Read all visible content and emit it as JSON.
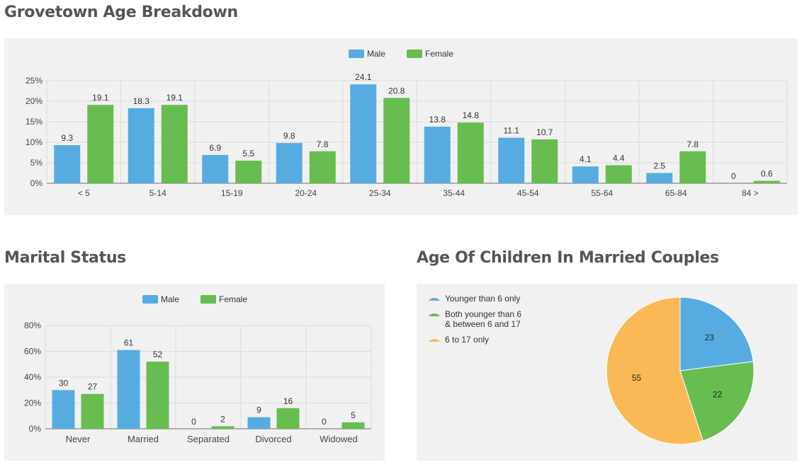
{
  "headings": {
    "age": "Grovetown Age Breakdown",
    "marital": "Marital Status",
    "children": "Age Of Children In Married Couples"
  },
  "colors": {
    "male": "#56ace1",
    "female": "#67bd50",
    "orange": "#fbb857"
  },
  "chart_data": [
    {
      "type": "bar",
      "title": "Grovetown Age Breakdown",
      "xlabel": "",
      "ylabel": "",
      "categories": [
        "< 5",
        "5-14",
        "15-19",
        "20-24",
        "25-34",
        "35-44",
        "45-54",
        "55-64",
        "65-84",
        "84 >"
      ],
      "series": [
        {
          "name": "Male",
          "color": "#56ace1",
          "values": [
            9.3,
            18.3,
            6.9,
            9.8,
            24.1,
            13.8,
            11.1,
            4.1,
            2.5,
            0
          ]
        },
        {
          "name": "Female",
          "color": "#67bd50",
          "values": [
            19.1,
            19.1,
            5.5,
            7.8,
            20.8,
            14.8,
            10.7,
            4.4,
            7.8,
            0.6
          ]
        }
      ],
      "ylim": [
        0,
        25
      ],
      "yticks": [
        "0%",
        "5%",
        "10%",
        "15%",
        "20%",
        "25%"
      ],
      "legend": "top-center",
      "grid": true
    },
    {
      "type": "bar",
      "title": "Marital Status",
      "xlabel": "",
      "ylabel": "",
      "categories": [
        "Never",
        "Married",
        "Separated",
        "Divorced",
        "Widowed"
      ],
      "series": [
        {
          "name": "Male",
          "color": "#56ace1",
          "values": [
            30,
            61,
            0,
            9,
            0
          ]
        },
        {
          "name": "Female",
          "color": "#67bd50",
          "values": [
            27,
            52,
            2,
            16,
            5
          ]
        }
      ],
      "ylim": [
        0,
        80
      ],
      "yticks": [
        "0%",
        "20%",
        "40%",
        "60%",
        "80%"
      ],
      "legend": "top-center",
      "grid": true
    },
    {
      "type": "pie",
      "title": "Age Of Children In Married Couples",
      "slices": [
        {
          "label": "Younger than 6 only",
          "value": 23,
          "color": "#56ace1"
        },
        {
          "label": "Both younger than 6 & between 6 and 17",
          "value": 22,
          "color": "#67bd50"
        },
        {
          "label": "6 to 17 only",
          "value": 55,
          "color": "#fbb857"
        }
      ],
      "legend": "top-left"
    }
  ]
}
